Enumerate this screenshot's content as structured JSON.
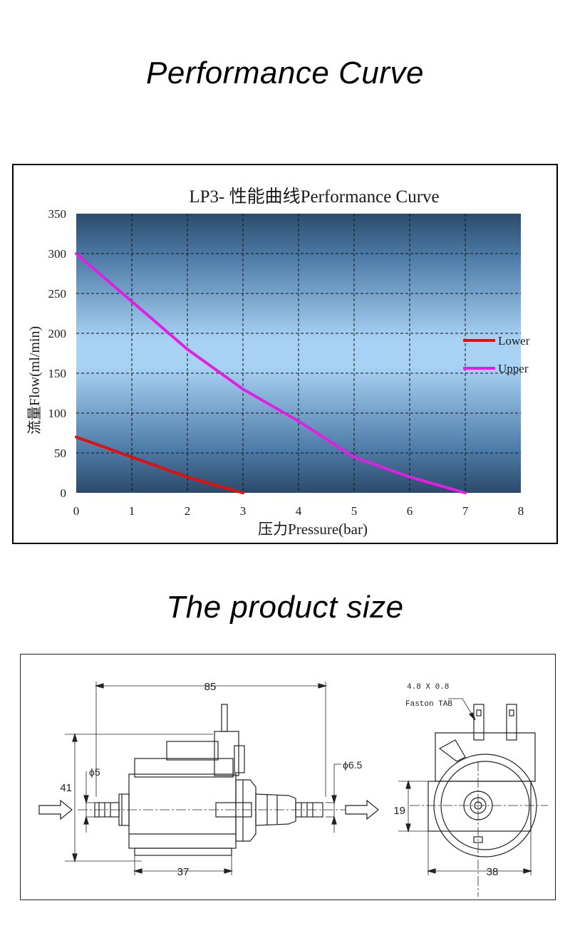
{
  "headings": {
    "performance": "Performance Curve",
    "size": "The product size"
  },
  "chart_data": {
    "type": "line",
    "title": "LP3- 性能曲线Performance Curve",
    "xlabel": "压力Pressure(bar)",
    "ylabel": "流量Flow(ml/min)",
    "xlim": [
      0,
      8
    ],
    "ylim": [
      0,
      350
    ],
    "x_ticks": [
      "0",
      "1",
      "2",
      "3",
      "4",
      "5",
      "6",
      "7",
      "8"
    ],
    "y_ticks": [
      "0",
      "50",
      "100",
      "150",
      "200",
      "250",
      "300",
      "350"
    ],
    "grid": true,
    "legend_position": "right",
    "series": [
      {
        "name": "Lower",
        "color": "#e01010",
        "points": [
          [
            0,
            70
          ],
          [
            1,
            45
          ],
          [
            2,
            20
          ],
          [
            3,
            0
          ]
        ]
      },
      {
        "name": "Upper",
        "color": "#e020e0",
        "points": [
          [
            0,
            300
          ],
          [
            1,
            240
          ],
          [
            2,
            180
          ],
          [
            3,
            130
          ],
          [
            4,
            90
          ],
          [
            5,
            45
          ],
          [
            6,
            20
          ],
          [
            7,
            0
          ]
        ]
      }
    ]
  },
  "dimensions": {
    "length": "85",
    "inlet_diameter": "ϕ5",
    "outlet_diameter": "ϕ6.5",
    "height": "41",
    "body_length": "37",
    "flange_height": "19",
    "flange_width": "38",
    "tab_size": "4.8 X 0.8",
    "tab_type": "Faston TAB"
  }
}
